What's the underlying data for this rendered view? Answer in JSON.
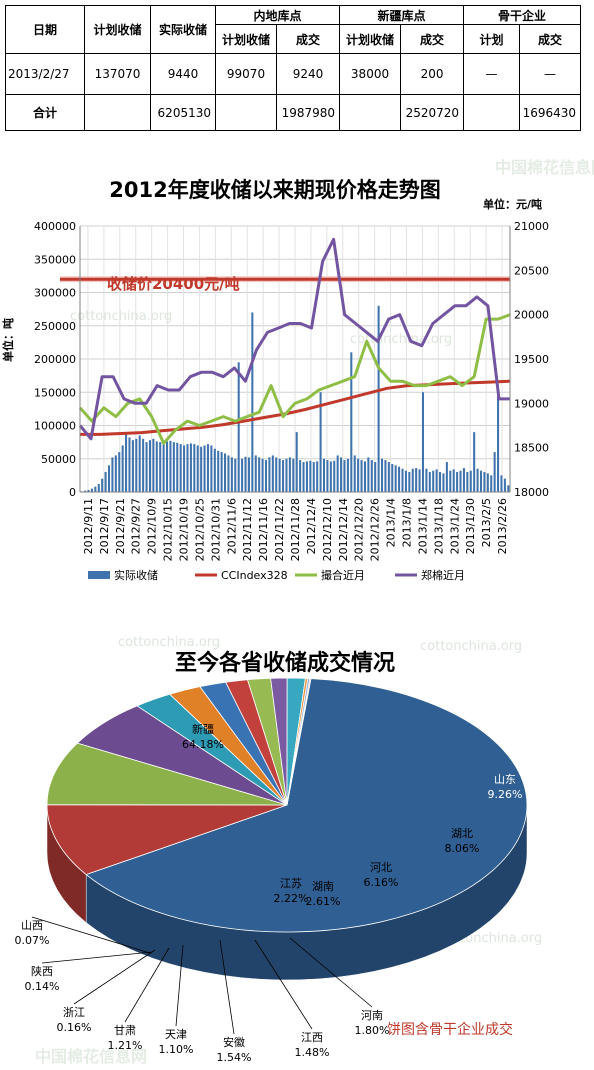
{
  "table": {
    "headers": {
      "date": "日期",
      "plan": "计划收储",
      "actual": "实际收储",
      "inland": "内地库点",
      "xinjiang": "新疆库点",
      "backbone": "骨干企业",
      "sub_plan": "计划收储",
      "sub_deal": "成交",
      "sub_plan2": "计划收储",
      "sub_deal2": "成交",
      "sub_plan3": "计划",
      "sub_deal3": "成交"
    },
    "row": {
      "date": "2013/2/27",
      "plan": "137070",
      "actual": "9440",
      "inland_plan": "99070",
      "inland_deal": "9240",
      "xj_plan": "38000",
      "xj_deal": "200",
      "bb_plan": "—",
      "bb_deal": "—"
    },
    "total": {
      "label": "合计",
      "actual": "6205130",
      "inland_deal": "1987980",
      "xj_deal": "2520720",
      "bb_deal": "1696430"
    }
  },
  "chart_data": [
    {
      "type": "bar+line",
      "title": "2012年度收储以来期现价格走势图",
      "unit_label": "单位：元/吨",
      "ylabel_left": "单位：吨",
      "annotation": "收储价20400元/吨",
      "annotation_value": 20400,
      "y_left": {
        "range": [
          0,
          400000
        ],
        "ticks": [
          "0",
          "50000",
          "100000",
          "150000",
          "200000",
          "250000",
          "300000",
          "350000",
          "400000"
        ]
      },
      "y_right": {
        "range": [
          18000,
          21000
        ],
        "ticks": [
          "18000",
          "18500",
          "19000",
          "19500",
          "20000",
          "20500",
          "21000"
        ]
      },
      "x_tick_labels": [
        "2012/9/11",
        "2012/9/17",
        "2012/9/21",
        "2012/9/27",
        "2012/10/9",
        "2012/10/15",
        "2012/10/19",
        "2012/10/25",
        "2012/10/31",
        "2012/11/6",
        "2012/11/12",
        "2012/11/16",
        "2012/11/22",
        "2012/11/28",
        "2012/12/4",
        "2012/12/10",
        "2012/12/14",
        "2012/12/20",
        "2012/12/26",
        "2013/1/4",
        "2013/1/8",
        "2013/1/14",
        "2013/1/18",
        "2013/1/24",
        "2013/1/30",
        "2013/2/5",
        "2013/2/26"
      ],
      "legend": [
        "实际收储",
        "CCIndex328",
        "撮合近月",
        "郑棉近月"
      ],
      "grid": true,
      "series": [
        {
          "name": "实际收储",
          "axis": "left",
          "kind": "bar",
          "values": [
            1000,
            2000,
            3000,
            5000,
            8000,
            12000,
            20000,
            30000,
            40000,
            52000,
            55000,
            60000,
            70000,
            88000,
            82000,
            78000,
            80000,
            85000,
            80000,
            75000,
            78000,
            80000,
            76000,
            75000,
            74000,
            76000,
            77000,
            75000,
            74000,
            72000,
            70000,
            72000,
            73000,
            72000,
            70000,
            68000,
            70000,
            72000,
            70000,
            65000,
            62000,
            60000,
            58000,
            55000,
            52000,
            50000,
            195000,
            50000,
            53000,
            52000,
            270000,
            55000,
            52000,
            50000,
            48000,
            52000,
            55000,
            52000,
            50000,
            48000,
            50000,
            52000,
            50000,
            90000,
            48000,
            45000,
            46000,
            47000,
            45000,
            46000,
            150000,
            50000,
            48000,
            46000,
            47000,
            55000,
            52000,
            48000,
            50000,
            210000,
            55000,
            50000,
            48000,
            46000,
            52000,
            48000,
            45000,
            280000,
            50000,
            48000,
            45000,
            42000,
            40000,
            38000,
            35000,
            32000,
            30000,
            35000,
            36000,
            34000,
            150000,
            35000,
            30000,
            32000,
            34000,
            30000,
            28000,
            45000,
            32000,
            34000,
            30000,
            32000,
            36000,
            30000,
            32000,
            90000,
            35000,
            32000,
            30000,
            28000,
            25000,
            60000,
            145000,
            25000,
            20000,
            10000
          ]
        },
        {
          "name": "CCIndex328",
          "axis": "right",
          "kind": "line",
          "values": [
            18650,
            18650,
            18660,
            18670,
            18690,
            18710,
            18730,
            18760,
            18800,
            18840,
            18880,
            18930,
            18990,
            19050,
            19110,
            19170,
            19200,
            19210,
            19220,
            19230,
            19240,
            19250
          ]
        },
        {
          "name": "撮合近月",
          "axis": "right",
          "kind": "line",
          "values": [
            18950,
            18800,
            18950,
            18850,
            19000,
            19050,
            18850,
            18550,
            18700,
            18800,
            18750,
            18800,
            18850,
            18800,
            18850,
            18900,
            19200,
            18850,
            19000,
            19050,
            19150,
            19200,
            19250,
            19300,
            19700,
            19400,
            19250,
            19250,
            19200,
            19200,
            19250,
            19300,
            19200,
            19300,
            19950,
            19950,
            20000
          ]
        },
        {
          "name": "郑棉近月",
          "axis": "right",
          "kind": "line",
          "values": [
            18750,
            18600,
            19300,
            19300,
            19050,
            19000,
            19000,
            19200,
            19150,
            19150,
            19300,
            19350,
            19350,
            19300,
            19400,
            19250,
            19600,
            19800,
            19850,
            19900,
            19900,
            19850,
            20600,
            20850,
            20000,
            19900,
            19800,
            19700,
            19950,
            20000,
            19700,
            19650,
            19900,
            20000,
            20100,
            20100,
            20200,
            20100,
            19050,
            19050
          ]
        }
      ]
    },
    {
      "type": "pie",
      "title": "至今各省收储成交情况",
      "note": "饼图含骨干企业成交",
      "slices": [
        {
          "label": "新疆",
          "value": 64.18,
          "text": "64.18%",
          "color": "#2f5f93"
        },
        {
          "label": "山东",
          "value": 9.26,
          "text": "9.26%",
          "color": "#b23a37"
        },
        {
          "label": "湖北",
          "value": 8.06,
          "text": "8.06%",
          "color": "#8db14a"
        },
        {
          "label": "河北",
          "value": 6.16,
          "text": "6.16%",
          "color": "#6d4b91"
        },
        {
          "label": "湖南",
          "value": 2.61,
          "text": "2.61%",
          "color": "#2e9bb5"
        },
        {
          "label": "江苏",
          "value": 2.22,
          "text": "2.22%",
          "color": "#e08027"
        },
        {
          "label": "河南",
          "value": 1.8,
          "text": "1.80%",
          "color": "#3a73b3"
        },
        {
          "label": "江西",
          "value": 1.48,
          "text": "1.48%",
          "color": "#c2413d"
        },
        {
          "label": "安徽",
          "value": 1.54,
          "text": "1.54%",
          "color": "#97ba52"
        },
        {
          "label": "天津",
          "value": 1.1,
          "text": "1.10%",
          "color": "#7a5aa0"
        },
        {
          "label": "甘肃",
          "value": 1.21,
          "text": "1.21%",
          "color": "#37a8c0"
        },
        {
          "label": "浙江",
          "value": 0.16,
          "text": "0.16%",
          "color": "#f0913a"
        },
        {
          "label": "陕西",
          "value": 0.14,
          "text": "0.14%",
          "color": "#90aedb"
        },
        {
          "label": "山西",
          "value": 0.07,
          "text": "0.07%",
          "color": "#db8e8c"
        }
      ]
    }
  ],
  "colors": {
    "bars": "#3e73ad",
    "cc_index": "#c0392b",
    "matching": "#8fbe46",
    "futures": "#7354a0",
    "reserve_line": "#c0392b",
    "note": "#c0392b"
  },
  "watermarks": [
    "cottonchina.org",
    "中国棉花信息网"
  ]
}
